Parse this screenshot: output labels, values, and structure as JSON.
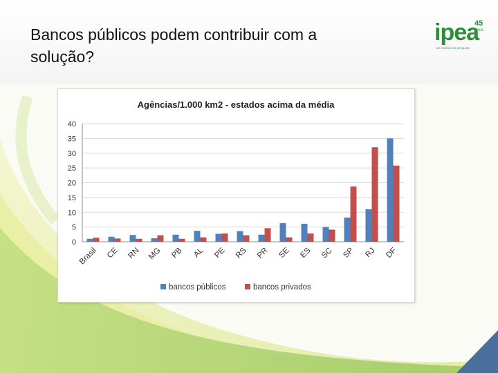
{
  "slide": {
    "title_line1": "Bancos públicos podem contribuir com a",
    "title_line2": "solução?",
    "colors": {
      "accent_green": "#2d8d3a",
      "swoosh_yellow": "#dde46a",
      "swoosh_green": "#8cc24a",
      "corner_blue": "#5b7fa8"
    }
  },
  "logo": {
    "word": "ipea",
    "number": "45",
    "sub": "anos",
    "tagline": "um instituto de pesquisa"
  },
  "chart_data": {
    "type": "bar",
    "title": "Agências/1.000 km2 - estados acima da média",
    "categories": [
      "Brasil",
      "CE",
      "RN",
      "MG",
      "PB",
      "AL",
      "PE",
      "RS",
      "PR",
      "SE",
      "ES",
      "SC",
      "SP",
      "RJ",
      "DF"
    ],
    "series": [
      {
        "name": "bancos públicos",
        "color": "#4f81bd",
        "values": [
          1,
          1.7,
          2.3,
          1.2,
          2.4,
          3.7,
          2.7,
          3.6,
          2.4,
          6.3,
          6.1,
          5,
          8.2,
          11,
          35
        ]
      },
      {
        "name": "bancos privados",
        "color": "#c0504d",
        "values": [
          1.4,
          1.1,
          1,
          2.2,
          1,
          1.5,
          2.8,
          2.2,
          4.6,
          1.5,
          2.8,
          4.1,
          18.7,
          32,
          25.8
        ]
      }
    ],
    "ylim": [
      0,
      40
    ],
    "yticks": [
      "0",
      "5",
      "10",
      "15",
      "20",
      "25",
      "30",
      "35",
      "40"
    ],
    "grid": true,
    "legend_position": "bottom"
  }
}
